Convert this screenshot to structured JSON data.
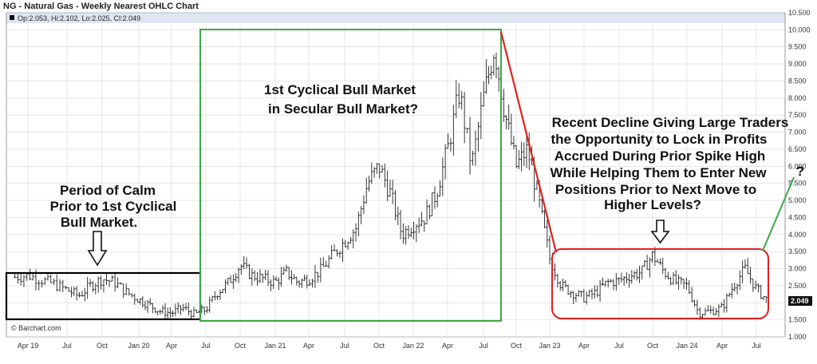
{
  "chart_data": {
    "type": "ohlc",
    "title": "NG - Natural Gas - Weekly Nearest OHLC Chart",
    "ohlc_legend": "Op:2.053, Hi:2.102, Lo:2.025, Cl:2.049",
    "last_value": "2.049",
    "credit": "© Barchart.com",
    "xlabel": "",
    "ylabel": "",
    "ylim": [
      1.0,
      10.5
    ],
    "y_ticks": [
      "10.500",
      "10.000",
      "9.500",
      "9.000",
      "8.500",
      "8.000",
      "7.500",
      "7.000",
      "6.500",
      "6.000",
      "5.500",
      "5.000",
      "4.500",
      "4.000",
      "3.500",
      "3.000",
      "2.500",
      "2.000",
      "1.500",
      "1.000"
    ],
    "x_ticks": [
      "Apr 19",
      "Jul",
      "Oct",
      "Jan 20",
      "Apr",
      "Jul",
      "Oct",
      "Jan 21",
      "Apr",
      "Jul",
      "Oct",
      "Jan 22",
      "Apr",
      "Jul",
      "Oct",
      "Jan 23",
      "Apr",
      "Jul",
      "Oct",
      "Jan 24",
      "Apr",
      "Jul"
    ],
    "grid": true,
    "series": [
      {
        "approx_close_path": [
          {
            "x": "2019-03",
            "y": 2.75
          },
          {
            "x": "2019-04",
            "y": 2.8
          },
          {
            "x": "2019-06",
            "y": 2.55
          },
          {
            "x": "2019-08",
            "y": 2.2
          },
          {
            "x": "2019-09",
            "y": 2.5
          },
          {
            "x": "2019-10",
            "y": 2.7
          },
          {
            "x": "2019-11",
            "y": 2.6
          },
          {
            "x": "2019-12",
            "y": 2.3
          },
          {
            "x": "2020-01",
            "y": 2.1
          },
          {
            "x": "2020-03",
            "y": 1.75
          },
          {
            "x": "2020-04",
            "y": 1.7
          },
          {
            "x": "2020-05",
            "y": 1.85
          },
          {
            "x": "2020-06",
            "y": 1.65
          },
          {
            "x": "2020-07",
            "y": 1.8
          },
          {
            "x": "2020-08",
            "y": 2.3
          },
          {
            "x": "2020-09",
            "y": 2.6
          },
          {
            "x": "2020-10",
            "y": 3.1
          },
          {
            "x": "2020-11",
            "y": 2.8
          },
          {
            "x": "2021-01",
            "y": 2.6
          },
          {
            "x": "2021-02",
            "y": 2.9
          },
          {
            "x": "2021-03",
            "y": 2.6
          },
          {
            "x": "2021-04",
            "y": 2.7
          },
          {
            "x": "2021-05",
            "y": 2.95
          },
          {
            "x": "2021-06",
            "y": 3.4
          },
          {
            "x": "2021-07",
            "y": 3.8
          },
          {
            "x": "2021-08",
            "y": 4.2
          },
          {
            "x": "2021-09",
            "y": 5.5
          },
          {
            "x": "2021-10",
            "y": 6.0
          },
          {
            "x": "2021-11",
            "y": 5.2
          },
          {
            "x": "2021-12",
            "y": 4.0
          },
          {
            "x": "2022-01",
            "y": 4.3
          },
          {
            "x": "2022-02",
            "y": 4.5
          },
          {
            "x": "2022-03",
            "y": 5.2
          },
          {
            "x": "2022-04",
            "y": 6.5
          },
          {
            "x": "2022-05",
            "y": 8.2
          },
          {
            "x": "2022-06",
            "y": 6.0
          },
          {
            "x": "2022-07",
            "y": 8.0
          },
          {
            "x": "2022-08",
            "y": 9.5
          },
          {
            "x": "2022-09",
            "y": 7.5
          },
          {
            "x": "2022-10",
            "y": 6.0
          },
          {
            "x": "2022-11",
            "y": 6.5
          },
          {
            "x": "2022-12",
            "y": 5.0
          },
          {
            "x": "2023-01",
            "y": 3.3
          },
          {
            "x": "2023-02",
            "y": 2.5
          },
          {
            "x": "2023-03",
            "y": 2.3
          },
          {
            "x": "2023-04",
            "y": 2.15
          },
          {
            "x": "2023-05",
            "y": 2.3
          },
          {
            "x": "2023-06",
            "y": 2.6
          },
          {
            "x": "2023-07",
            "y": 2.65
          },
          {
            "x": "2023-08",
            "y": 2.8
          },
          {
            "x": "2023-09",
            "y": 2.9
          },
          {
            "x": "2023-10",
            "y": 3.4
          },
          {
            "x": "2023-11",
            "y": 2.9
          },
          {
            "x": "2023-12",
            "y": 2.6
          },
          {
            "x": "2024-01",
            "y": 2.5
          },
          {
            "x": "2024-02",
            "y": 1.7
          },
          {
            "x": "2024-03",
            "y": 1.75
          },
          {
            "x": "2024-04",
            "y": 1.85
          },
          {
            "x": "2024-05",
            "y": 2.5
          },
          {
            "x": "2024-06",
            "y": 3.0
          },
          {
            "x": "2024-07",
            "y": 2.4
          },
          {
            "x": "2024-08",
            "y": 2.05
          }
        ]
      }
    ],
    "annotations": [
      {
        "text_lines": [
          "Period of Calm",
          "Prior to 1st Cyclical",
          "Bull Market."
        ]
      },
      {
        "text_lines": [
          "1st Cyclical Bull Market",
          "in Secular Bull Market?"
        ]
      },
      {
        "text_lines": [
          "Recent Decline Giving Large Traders",
          "the Opportunity to Lock in Profits",
          "Accrued During Prior Spike High",
          "While Helping Them to Enter New",
          "Positions Prior to Next Move to",
          "Higher Levels?"
        ]
      },
      {
        "text_lines": [
          "?"
        ]
      }
    ],
    "colors": {
      "bars": "#222222",
      "grid": "#d8d8d8",
      "calm_box": "#000000",
      "bull_box": "#3aa845",
      "decline_line": "#e02020",
      "recent_box": "#e02020",
      "projection_line": "#3aa845",
      "header_bg": "#dfe6f2",
      "last_label_bg": "#111111"
    }
  }
}
